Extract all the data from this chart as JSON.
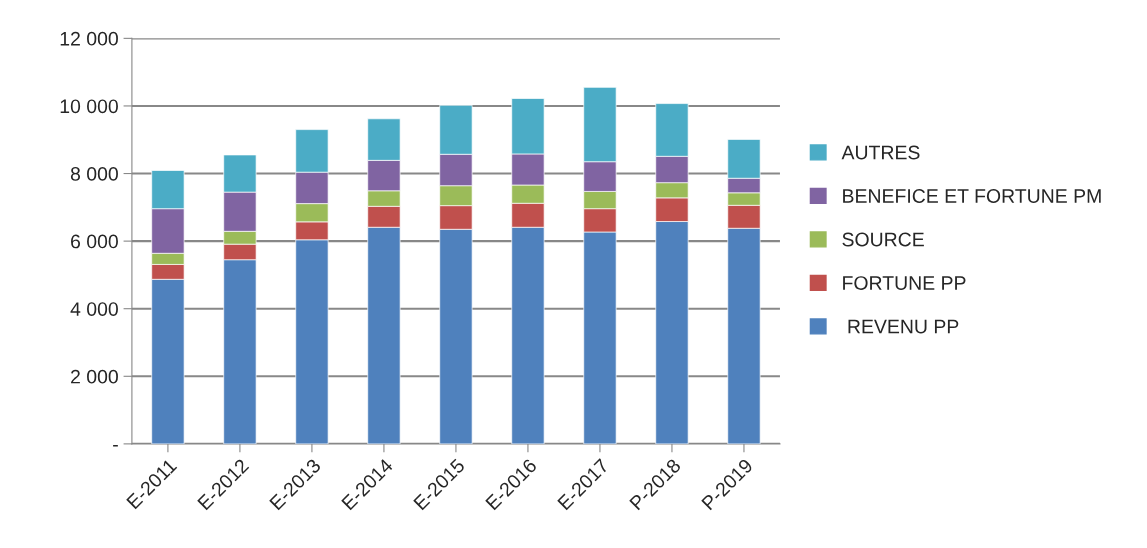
{
  "chart_data": {
    "type": "bar",
    "stacked": true,
    "categories": [
      "E-2011",
      "E-2012",
      "E-2013",
      "E-2014",
      "E-2015",
      "E-2016",
      "E-2017",
      "P-2018",
      "P-2019"
    ],
    "series": [
      {
        "name": " REVENU PP",
        "color": "#4f81bd",
        "values": [
          4870,
          5450,
          6040,
          6410,
          6350,
          6410,
          6270,
          6580,
          6380
        ]
      },
      {
        "name": "FORTUNE PP",
        "color": "#c0504d",
        "values": [
          440,
          460,
          530,
          620,
          700,
          710,
          690,
          700,
          680
        ]
      },
      {
        "name": "SOURCE",
        "color": "#9bbb59",
        "values": [
          330,
          380,
          540,
          460,
          590,
          540,
          510,
          450,
          370
        ]
      },
      {
        "name": "BENEFICE ET FORTUNE PM",
        "color": "#8064a2",
        "values": [
          1320,
          1160,
          930,
          900,
          930,
          920,
          880,
          780,
          430
        ]
      },
      {
        "name": "AUTRES",
        "color": "#4bacc6",
        "values": [
          1130,
          1100,
          1260,
          1230,
          1450,
          1640,
          2200,
          1560,
          1150
        ]
      }
    ],
    "ylim": [
      0,
      12000
    ],
    "yticks": [
      {
        "value": 0,
        "label": "-"
      },
      {
        "value": 2000,
        "label": "2 000"
      },
      {
        "value": 4000,
        "label": "4 000"
      },
      {
        "value": 6000,
        "label": "6 000"
      },
      {
        "value": 8000,
        "label": "8 000"
      },
      {
        "value": 10000,
        "label": "10 000"
      },
      {
        "value": 12000,
        "label": "12 000"
      }
    ],
    "grid": "y",
    "legend": "right"
  }
}
